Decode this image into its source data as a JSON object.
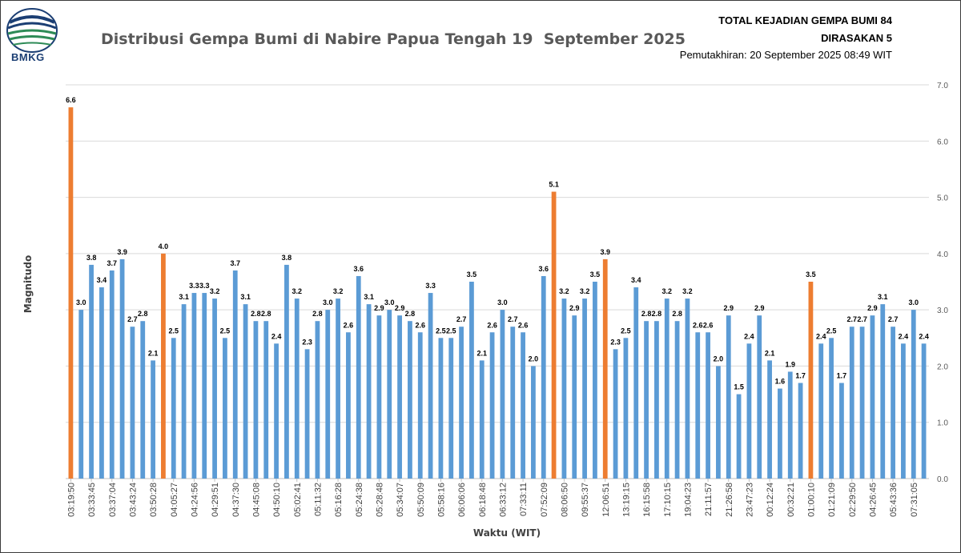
{
  "header": {
    "title": "Distribusi Gempa Bumi di Nabire Papua Tengah 19  September 2025",
    "total_label": "TOTAL KEJADIAN GEMPA BUMI 84",
    "felt_label": "DIRASAKAN 5",
    "updated_label": "Pemutakhiran: 20 September 2025 08:49 WIT"
  },
  "logo": {
    "text": "BMKG"
  },
  "colors": {
    "bar": "#5b9bd5",
    "felt_bar": "#ed7d31",
    "grid": "#d9d9d9",
    "logo": "#1b3e73"
  },
  "chart_data": {
    "type": "bar",
    "xlabel": "Waktu (WIT)",
    "ylabel": "Magnitudo",
    "ylim": [
      0,
      7
    ],
    "yticks": [
      "0.0",
      "1.0",
      "2.0",
      "3.0",
      "4.0",
      "5.0",
      "6.0",
      "7.0"
    ],
    "grid": true,
    "x_tick_labels": [
      "03:19:50",
      "03:33:45",
      "03:37:04",
      "03:43:24",
      "03:50:28",
      "04:05:27",
      "04:24:56",
      "04:29:51",
      "04:37:30",
      "04:45:08",
      "04:50:10",
      "05:02:41",
      "05:11:32",
      "05:16:28",
      "05:24:38",
      "05:28:48",
      "05:34:07",
      "05:50:09",
      "05:58:16",
      "06:06:06",
      "06:18:48",
      "06:33:12",
      "07:33:11",
      "07:52:09",
      "08:06:50",
      "09:55:37",
      "12:06:51",
      "13:19:15",
      "16:15:58",
      "17:10:15",
      "19:04:23",
      "21:11:57",
      "21:26:58",
      "23:47:23",
      "00:12:24",
      "00:32:21",
      "01:00:10",
      "01:21:09",
      "02:29:50",
      "04:26:45",
      "05:43:36",
      "07:31:05"
    ],
    "values": [
      6.6,
      3.0,
      3.8,
      3.4,
      3.7,
      3.9,
      2.7,
      2.8,
      2.1,
      4.0,
      2.5,
      3.1,
      3.3,
      3.3,
      3.2,
      2.5,
      3.7,
      3.1,
      2.8,
      2.8,
      2.4,
      3.8,
      3.2,
      2.3,
      2.8,
      3.0,
      3.2,
      2.6,
      3.6,
      3.1,
      2.9,
      3.0,
      2.9,
      2.8,
      2.6,
      3.3,
      2.5,
      2.5,
      2.7,
      3.5,
      2.1,
      2.6,
      3.0,
      2.7,
      2.6,
      2.0,
      3.6,
      5.1,
      3.2,
      2.9,
      3.2,
      3.5,
      3.9,
      2.3,
      2.5,
      3.4,
      2.8,
      2.8,
      3.2,
      2.8,
      3.2,
      2.6,
      2.6,
      2.0,
      2.9,
      1.5,
      2.4,
      2.9,
      2.1,
      1.6,
      1.9,
      1.7,
      3.5,
      2.4,
      2.5,
      1.7,
      2.7,
      2.7,
      2.9,
      3.1,
      2.7,
      2.4,
      3.0,
      2.4
    ],
    "felt_indices": [
      0,
      9,
      47,
      52,
      72
    ]
  }
}
